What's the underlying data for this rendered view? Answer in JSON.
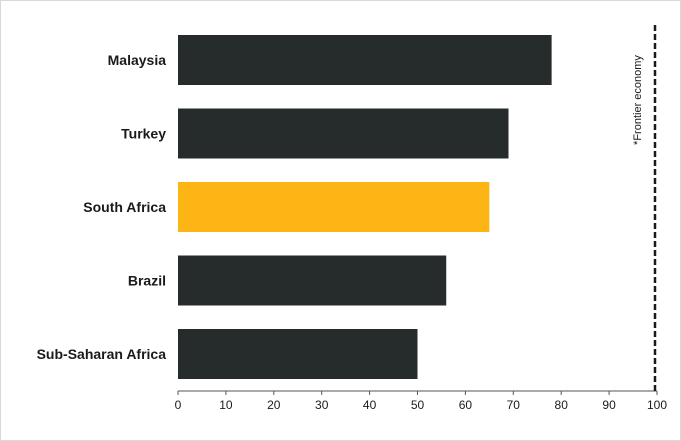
{
  "chart_data": {
    "type": "bar",
    "orientation": "horizontal",
    "categories": [
      "Malaysia",
      "Turkey",
      "South Africa",
      "Brazil",
      "Sub-Saharan Africa"
    ],
    "values": [
      78,
      69,
      65,
      56,
      50
    ],
    "highlight_category": "South Africa",
    "xlim": [
      0,
      100
    ],
    "xticks": [
      "0",
      "10",
      "20",
      "30",
      "40",
      "50",
      "60",
      "70",
      "80",
      "90",
      "100"
    ],
    "title": "",
    "xlabel": "",
    "ylabel": "",
    "grid": false,
    "reference_line": {
      "x": 100,
      "label": "*Frontier economy",
      "style": "dashed"
    },
    "colors": {
      "bar": "#262c2b",
      "highlight": "#fdb515",
      "axis": "#555555",
      "reference": "#1a1a1a"
    }
  }
}
